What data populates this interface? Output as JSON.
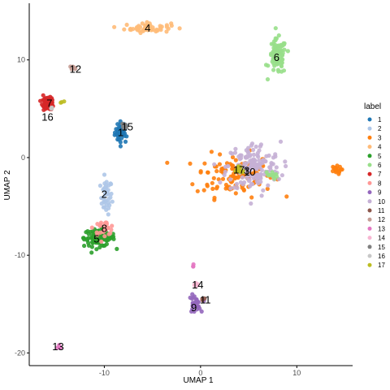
{
  "chart_data": {
    "type": "scatter",
    "xlabel": "UMAP 1",
    "ylabel": "UMAP 2",
    "xlim": [
      -17.8,
      15.8
    ],
    "ylim": [
      -21.3,
      15.8
    ],
    "x_ticks": [
      -10,
      0,
      10
    ],
    "y_ticks": [
      -20,
      -10,
      0,
      10
    ],
    "grid": false,
    "legend": {
      "title": "label",
      "position": "right",
      "entries": [
        "1",
        "2",
        "3",
        "4",
        "5",
        "6",
        "7",
        "8",
        "9",
        "10",
        "11",
        "12",
        "13",
        "14",
        "15",
        "16",
        "17"
      ]
    },
    "colors": {
      "1": "#1f77b4",
      "2": "#aec7e8",
      "3": "#ff7f0e",
      "4": "#ffbb78",
      "5": "#2ca02c",
      "6": "#98df8a",
      "7": "#d62728",
      "8": "#ff9896",
      "9": "#9467bd",
      "10": "#c5b0d5",
      "11": "#8c564b",
      "12": "#c49c94",
      "13": "#e377c2",
      "14": "#f7b6d2",
      "15": "#7f7f7f",
      "16": "#c7c7c7",
      "17": "#bcbd22"
    },
    "clusters": [
      {
        "id": "1",
        "label": "1",
        "x": -8.2,
        "y": 2.6,
        "sx": 0.35,
        "sy": 0.55,
        "n": 40
      },
      {
        "id": "2",
        "label": "2",
        "x": -9.8,
        "y": -4.0,
        "sx": 0.3,
        "sy": 0.9,
        "n": 40
      },
      {
        "id": "3",
        "label": "3",
        "x": 3.5,
        "y": -1.8,
        "sx": 2.0,
        "sy": 1.1,
        "n": 120
      },
      {
        "id": "4",
        "label": "4",
        "x": -5.5,
        "y": 13.3,
        "sx": 1.2,
        "sy": 0.25,
        "n": 55
      },
      {
        "id": "5",
        "label": "5",
        "x": -10.5,
        "y": -8.2,
        "sx": 0.8,
        "sy": 0.45,
        "n": 110
      },
      {
        "id": "6",
        "label": "6",
        "x": 8.0,
        "y": 10.3,
        "sx": 0.45,
        "sy": 0.9,
        "n": 90
      },
      {
        "id": "7",
        "label": "7",
        "x": -15.8,
        "y": 5.5,
        "sx": 0.3,
        "sy": 0.3,
        "n": 45
      },
      {
        "id": "8",
        "label": "8",
        "x": -10.0,
        "y": -7.2,
        "sx": 0.55,
        "sy": 0.35,
        "n": 30
      },
      {
        "id": "9",
        "label": "9",
        "x": -0.6,
        "y": -15.0,
        "sx": 0.3,
        "sy": 0.45,
        "n": 30
      },
      {
        "id": "10",
        "label": "10",
        "x": 5.5,
        "y": -1.0,
        "sx": 1.4,
        "sy": 1.3,
        "n": 150
      },
      {
        "id": "11",
        "label": "11",
        "x": 0.2,
        "y": -14.5,
        "sx": 0.1,
        "sy": 0.1,
        "n": 3
      },
      {
        "id": "12",
        "label": "12",
        "x": -13.0,
        "y": 9.2,
        "sx": 0.2,
        "sy": 0.1,
        "n": 6
      },
      {
        "id": "13",
        "label": "13",
        "x": -14.7,
        "y": -19.3,
        "sx": 0.15,
        "sy": 0.1,
        "n": 5
      },
      {
        "id": "14",
        "label": "14",
        "x": -0.5,
        "y": -12.9,
        "sx": 0.12,
        "sy": 0.15,
        "n": 6
      },
      {
        "id": "15",
        "label": "15",
        "x": -8.0,
        "y": 3.2,
        "sx": 0.2,
        "sy": 0.2,
        "n": 8
      },
      {
        "id": "16",
        "label": "16",
        "x": -15.6,
        "y": 5.0,
        "sx": 0.15,
        "sy": 0.1,
        "n": 4
      },
      {
        "id": "17",
        "label": "17",
        "x": 4.0,
        "y": -1.2,
        "sx": 0.35,
        "sy": 0.3,
        "n": 12
      }
    ],
    "extra_points": [
      {
        "id": "3",
        "x": 14.0,
        "y": -1.3,
        "sx": 0.3,
        "sy": 0.2,
        "n": 18
      },
      {
        "id": "6",
        "x": 7.3,
        "y": -1.8,
        "sx": 0.35,
        "sy": 0.2,
        "n": 12
      },
      {
        "id": "7",
        "x": -16.1,
        "y": 5.8,
        "sx": 0.15,
        "sy": 0.3,
        "n": 10
      },
      {
        "id": "17",
        "x": -14.4,
        "y": 5.7,
        "sx": 0.1,
        "sy": 0.05,
        "n": 3
      },
      {
        "id": "13",
        "x": -0.8,
        "y": -11.0,
        "sx": 0.05,
        "sy": 0.1,
        "n": 3
      }
    ],
    "label_positions": [
      {
        "label": "1",
        "x": -8.3,
        "y": 2.6
      },
      {
        "label": "2",
        "x": -10.0,
        "y": -3.7
      },
      {
        "label": "3",
        "x": 4.8,
        "y": -1.3
      },
      {
        "label": "4",
        "x": -5.5,
        "y": 13.3
      },
      {
        "label": "5",
        "x": -10.8,
        "y": -8.3
      },
      {
        "label": "6",
        "x": 7.9,
        "y": 10.3
      },
      {
        "label": "7",
        "x": -15.7,
        "y": 5.6
      },
      {
        "label": "8",
        "x": -10.0,
        "y": -7.2
      },
      {
        "label": "9",
        "x": -0.7,
        "y": -15.3
      },
      {
        "label": "10",
        "x": 5.1,
        "y": -1.4
      },
      {
        "label": "11",
        "x": 0.5,
        "y": -14.5
      },
      {
        "label": "12",
        "x": -13.0,
        "y": 9.1
      },
      {
        "label": "13",
        "x": -14.8,
        "y": -19.3
      },
      {
        "label": "14",
        "x": -0.3,
        "y": -13.0
      },
      {
        "label": "15",
        "x": -7.6,
        "y": 3.2
      },
      {
        "label": "16",
        "x": -15.9,
        "y": 4.2
      },
      {
        "label": "17",
        "x": 4.0,
        "y": -1.2
      }
    ]
  }
}
